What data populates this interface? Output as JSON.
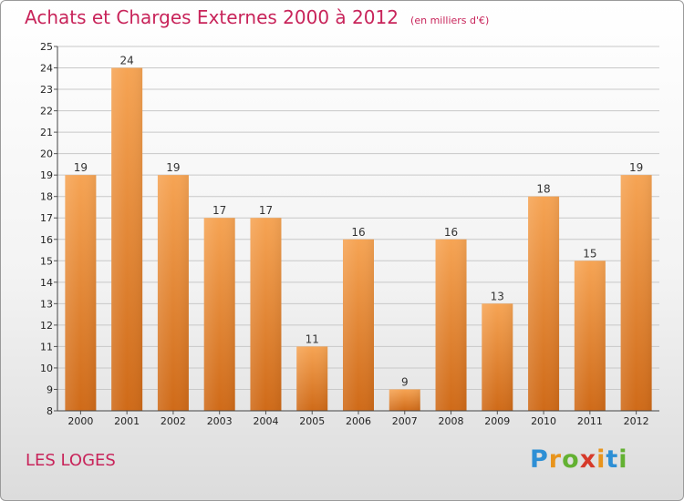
{
  "title": "Achats et Charges Externes 2000 à 2012",
  "unit": "(en milliers d'€)",
  "commune": "LES LOGES",
  "logo": "Proxiti",
  "colors": {
    "bar_top": "#f6a454",
    "bar_bottom": "#cf6a18",
    "title": "#c8245a",
    "grid": "#c8c8c8"
  },
  "chart_data": {
    "type": "bar",
    "title": "Achats et Charges Externes 2000 à 2012",
    "unit": "(en milliers d'€)",
    "categories": [
      "2000",
      "2001",
      "2002",
      "2003",
      "2004",
      "2005",
      "2006",
      "2007",
      "2008",
      "2009",
      "2010",
      "2011",
      "2012"
    ],
    "values": [
      19,
      24,
      19,
      17,
      17,
      11,
      16,
      9,
      16,
      13,
      18,
      15,
      19
    ],
    "ylim": [
      8,
      25
    ],
    "yticks": [
      8,
      9,
      10,
      11,
      12,
      13,
      14,
      15,
      16,
      17,
      18,
      19,
      20,
      21,
      22,
      23,
      24,
      25
    ],
    "grid": true,
    "legend": "none"
  }
}
